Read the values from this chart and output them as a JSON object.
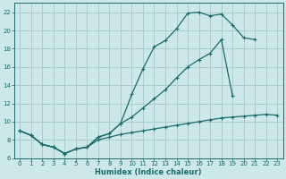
{
  "xlabel": "Humidex (Indice chaleur)",
  "background_color": "#cce8e8",
  "grid_color": "#aacccc",
  "line_color": "#1a6b6b",
  "xlim": [
    -0.5,
    23.5
  ],
  "ylim": [
    6,
    23
  ],
  "xticks": [
    0,
    1,
    2,
    3,
    4,
    5,
    6,
    7,
    8,
    9,
    10,
    11,
    12,
    13,
    14,
    15,
    16,
    17,
    18,
    19,
    20,
    21,
    22,
    23
  ],
  "yticks": [
    6,
    8,
    10,
    12,
    14,
    16,
    18,
    20,
    22
  ],
  "curve1_x": [
    0,
    1,
    2,
    3,
    4,
    5,
    6,
    7,
    8,
    9,
    10,
    11,
    12,
    13,
    14,
    15,
    16,
    17,
    18,
    19,
    20,
    21
  ],
  "curve1_y": [
    9.0,
    8.5,
    7.5,
    7.2,
    6.5,
    7.0,
    7.2,
    8.3,
    8.7,
    9.8,
    13.0,
    15.8,
    18.2,
    18.9,
    20.2,
    21.9,
    22.0,
    21.6,
    21.8,
    20.6,
    19.2,
    19.0
  ],
  "curve2_x": [
    0,
    1,
    2,
    3,
    4,
    5,
    6,
    7,
    8,
    9,
    10,
    11,
    12,
    13,
    14,
    15,
    16,
    17,
    18,
    19,
    20,
    21,
    22,
    23
  ],
  "curve2_y": [
    9.0,
    8.5,
    7.5,
    7.2,
    6.5,
    7.0,
    7.2,
    8.3,
    8.7,
    9.8,
    10.5,
    11.5,
    12.5,
    13.5,
    14.8,
    16.0,
    16.8,
    17.5,
    19.0,
    12.8,
    null,
    null,
    null,
    null
  ],
  "curve3_x": [
    0,
    1,
    2,
    3,
    4,
    5,
    6,
    7,
    8,
    9,
    10,
    11,
    12,
    13,
    14,
    15,
    16,
    17,
    18,
    19,
    20,
    21,
    22,
    23
  ],
  "curve3_y": [
    9.0,
    8.5,
    7.5,
    7.2,
    6.5,
    7.0,
    7.2,
    8.0,
    8.3,
    8.6,
    8.8,
    9.0,
    9.2,
    9.4,
    9.6,
    9.8,
    10.0,
    10.2,
    10.4,
    10.5,
    10.6,
    10.7,
    10.8,
    10.7
  ]
}
